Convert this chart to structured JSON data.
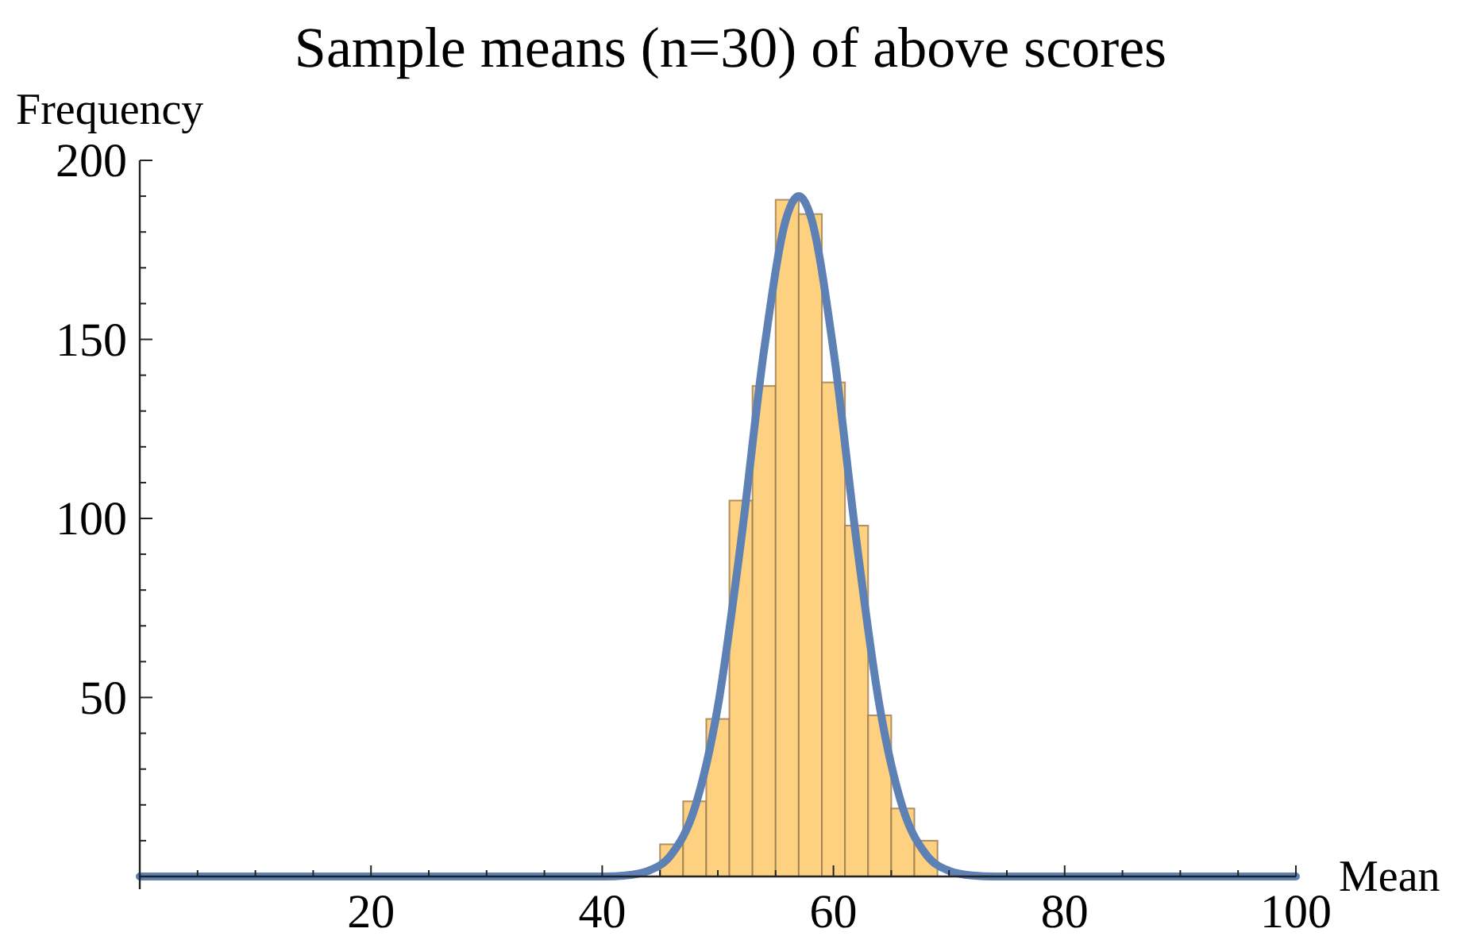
{
  "chart_data": {
    "type": "histogram",
    "title": "Sample means (n=30) of above scores",
    "xlabel": "Mean",
    "ylabel": "Frequency",
    "xlim": [
      0,
      100
    ],
    "ylim": [
      0,
      200
    ],
    "xticks": [
      {
        "value": 5,
        "label": null
      },
      {
        "value": 10,
        "label": null
      },
      {
        "value": 15,
        "label": null
      },
      20,
      {
        "value": 25,
        "label": null
      },
      {
        "value": 30,
        "label": null
      },
      {
        "value": 35,
        "label": null
      },
      40,
      {
        "value": 45,
        "label": null
      },
      {
        "value": 50,
        "label": null
      },
      {
        "value": 55,
        "label": null
      },
      60,
      {
        "value": 65,
        "label": null
      },
      {
        "value": 70,
        "label": null
      },
      {
        "value": 75,
        "label": null
      },
      80,
      {
        "value": 85,
        "label": null
      },
      {
        "value": 90,
        "label": null
      },
      {
        "value": 95,
        "label": null
      },
      100
    ],
    "yticks": [
      {
        "value": 10,
        "label": null
      },
      {
        "value": 20,
        "label": null
      },
      {
        "value": 30,
        "label": null
      },
      {
        "value": 40,
        "label": null
      },
      50,
      {
        "value": 60,
        "label": null
      },
      {
        "value": 70,
        "label": null
      },
      {
        "value": 80,
        "label": null
      },
      {
        "value": 90,
        "label": null
      },
      100,
      {
        "value": 110,
        "label": null
      },
      {
        "value": 120,
        "label": null
      },
      {
        "value": 130,
        "label": null
      },
      {
        "value": 140,
        "label": null
      },
      150,
      {
        "value": 160,
        "label": null
      },
      {
        "value": 170,
        "label": null
      },
      {
        "value": 180,
        "label": null
      },
      {
        "value": 190,
        "label": null
      },
      200
    ],
    "series": [
      {
        "color": "#fdd17f",
        "bins": [
          45,
          47,
          49,
          51,
          53,
          55,
          57,
          59,
          61,
          63,
          65,
          67,
          69
        ],
        "values": [
          9,
          21,
          44,
          105,
          137,
          189,
          185,
          138,
          98,
          45,
          19,
          10
        ]
      },
      {
        "type": "line",
        "color": "#5e81b5",
        "x": [
          0,
          40,
          42,
          44,
          46,
          48,
          50,
          52,
          54,
          56,
          57,
          58,
          60,
          62,
          64,
          66,
          68,
          70,
          72,
          74,
          100
        ],
        "values": [
          0,
          0,
          0.3,
          1.6,
          6.2,
          19.1,
          47.4,
          93.5,
          147,
          184.7,
          190,
          184.7,
          147,
          93.5,
          47.4,
          19.1,
          6.2,
          1.6,
          0.3,
          0,
          0
        ]
      }
    ]
  }
}
